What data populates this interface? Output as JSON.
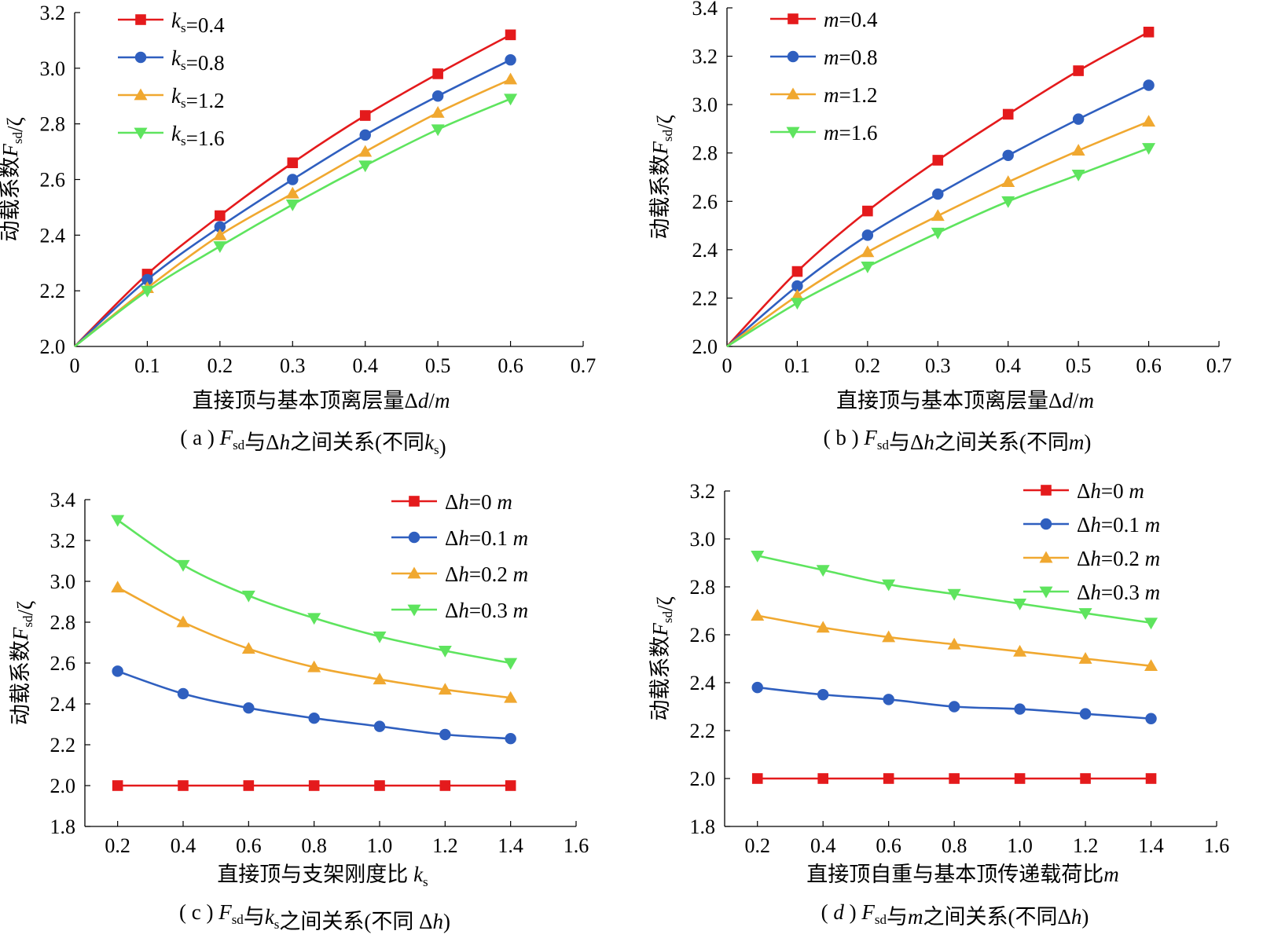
{
  "colors": {
    "red": "#e41a1c",
    "blue": "#2f5fbf",
    "orange": "#f0a830",
    "green": "#5ee45e"
  },
  "chart_data": [
    {
      "id": "a",
      "type": "line",
      "caption": "( a ) F_sd与Δh之间关系(不同k_s)",
      "xlabel": "直接顶与基本顶离层量Δd/m",
      "ylabel": "动载系数F_sd/ζ",
      "xlim": [
        0,
        0.7
      ],
      "ylim": [
        2.0,
        3.2
      ],
      "xticks": [
        "0",
        "0.1",
        "0.2",
        "0.3",
        "0.4",
        "0.5",
        "0.6",
        "0.7"
      ],
      "yticks": [
        "2.0",
        "2.2",
        "2.4",
        "2.6",
        "2.8",
        "3.0",
        "3.2"
      ],
      "legend_position": "top-left",
      "x": [
        0,
        0.1,
        0.2,
        0.3,
        0.4,
        0.5,
        0.6
      ],
      "series": [
        {
          "name": "k_s=0.4",
          "marker": "square",
          "color": "red",
          "values": [
            2.0,
            2.26,
            2.47,
            2.66,
            2.83,
            2.98,
            3.12
          ]
        },
        {
          "name": "k_s=0.8",
          "marker": "circle",
          "color": "blue",
          "values": [
            2.0,
            2.24,
            2.43,
            2.6,
            2.76,
            2.9,
            3.03
          ]
        },
        {
          "name": "k_s=1.2",
          "marker": "triangle-up",
          "color": "orange",
          "values": [
            2.0,
            2.21,
            2.4,
            2.55,
            2.7,
            2.84,
            2.96
          ]
        },
        {
          "name": "k_s=1.6",
          "marker": "triangle-down",
          "color": "green",
          "values": [
            2.0,
            2.2,
            2.36,
            2.51,
            2.65,
            2.78,
            2.89
          ]
        }
      ]
    },
    {
      "id": "b",
      "type": "line",
      "caption": "( b ) F_sd与Δh之间关系(不同m)",
      "xlabel": "直接顶与基本顶离层量Δd/m",
      "ylabel": "动载系数F_sd/ζ",
      "xlim": [
        0,
        0.7
      ],
      "ylim": [
        2.0,
        3.4
      ],
      "xticks": [
        "0",
        "0.1",
        "0.2",
        "0.3",
        "0.4",
        "0.5",
        "0.6",
        "0.7"
      ],
      "yticks": [
        "2.0",
        "2.2",
        "2.4",
        "2.6",
        "2.8",
        "3.0",
        "3.2",
        "3.4"
      ],
      "legend_position": "top-left",
      "x": [
        0,
        0.1,
        0.2,
        0.3,
        0.4,
        0.5,
        0.6
      ],
      "series": [
        {
          "name": "m=0.4",
          "marker": "square",
          "color": "red",
          "values": [
            2.0,
            2.31,
            2.56,
            2.77,
            2.96,
            3.14,
            3.3
          ]
        },
        {
          "name": "m=0.8",
          "marker": "circle",
          "color": "blue",
          "values": [
            2.0,
            2.25,
            2.46,
            2.63,
            2.79,
            2.94,
            3.08
          ]
        },
        {
          "name": "m=1.2",
          "marker": "triangle-up",
          "color": "orange",
          "values": [
            2.0,
            2.21,
            2.39,
            2.54,
            2.68,
            2.81,
            2.93
          ]
        },
        {
          "name": "m=1.6",
          "marker": "triangle-down",
          "color": "green",
          "values": [
            2.0,
            2.18,
            2.33,
            2.47,
            2.6,
            2.71,
            2.82
          ]
        }
      ]
    },
    {
      "id": "c",
      "type": "line",
      "caption": "( c ) F_sd与k_s之间关系(不同 Δh)",
      "xlabel": "直接顶与支架刚度比 k_s",
      "ylabel": "动载系数F_sd/ζ",
      "xlim": [
        0.1,
        1.6
      ],
      "ylim": [
        1.8,
        3.4
      ],
      "xticks": [
        "0.2",
        "0.4",
        "0.6",
        "0.8",
        "1.0",
        "1.2",
        "1.4",
        "1.6"
      ],
      "yticks": [
        "1.8",
        "2.0",
        "2.2",
        "2.4",
        "2.6",
        "2.8",
        "3.0",
        "3.2",
        "3.4"
      ],
      "legend_position": "top-right",
      "x": [
        0.2,
        0.4,
        0.6,
        0.8,
        1.0,
        1.2,
        1.4
      ],
      "series": [
        {
          "name": "Δh=0 m",
          "marker": "square",
          "color": "red",
          "values": [
            2.0,
            2.0,
            2.0,
            2.0,
            2.0,
            2.0,
            2.0
          ]
        },
        {
          "name": "Δh=0.1 m",
          "marker": "circle",
          "color": "blue",
          "values": [
            2.56,
            2.45,
            2.38,
            2.33,
            2.29,
            2.25,
            2.23
          ]
        },
        {
          "name": "Δh=0.2 m",
          "marker": "triangle-up",
          "color": "orange",
          "values": [
            2.97,
            2.8,
            2.67,
            2.58,
            2.52,
            2.47,
            2.43
          ]
        },
        {
          "name": "Δh=0.3 m",
          "marker": "triangle-down",
          "color": "green",
          "values": [
            3.3,
            3.08,
            2.93,
            2.82,
            2.73,
            2.66,
            2.6
          ]
        }
      ]
    },
    {
      "id": "d",
      "type": "line",
      "caption": "( d ) F_sd与m之间关系(不同Δh)",
      "xlabel": "直接顶自重与基本顶传递载荷比m",
      "ylabel": "动载系数F_sd/ζ",
      "xlim": [
        0.1,
        1.6
      ],
      "ylim": [
        1.8,
        3.2
      ],
      "xticks": [
        "0.2",
        "0.4",
        "0.6",
        "0.8",
        "1.0",
        "1.2",
        "1.4",
        "1.6"
      ],
      "yticks": [
        "1.8",
        "2.0",
        "2.2",
        "2.4",
        "2.6",
        "2.8",
        "3.0",
        "3.2"
      ],
      "legend_position": "top-right",
      "x": [
        0.2,
        0.4,
        0.6,
        0.8,
        1.0,
        1.2,
        1.4
      ],
      "series": [
        {
          "name": "Δh=0 m",
          "marker": "square",
          "color": "red",
          "values": [
            2.0,
            2.0,
            2.0,
            2.0,
            2.0,
            2.0,
            2.0
          ]
        },
        {
          "name": "Δh=0.1 m",
          "marker": "circle",
          "color": "blue",
          "values": [
            2.38,
            2.35,
            2.33,
            2.3,
            2.29,
            2.27,
            2.25
          ]
        },
        {
          "name": "Δh=0.2 m",
          "marker": "triangle-up",
          "color": "orange",
          "values": [
            2.68,
            2.63,
            2.59,
            2.56,
            2.53,
            2.5,
            2.47
          ]
        },
        {
          "name": "Δh=0.3 m",
          "marker": "triangle-down",
          "color": "green",
          "values": [
            2.93,
            2.87,
            2.81,
            2.77,
            2.73,
            2.69,
            2.65
          ]
        }
      ]
    }
  ]
}
